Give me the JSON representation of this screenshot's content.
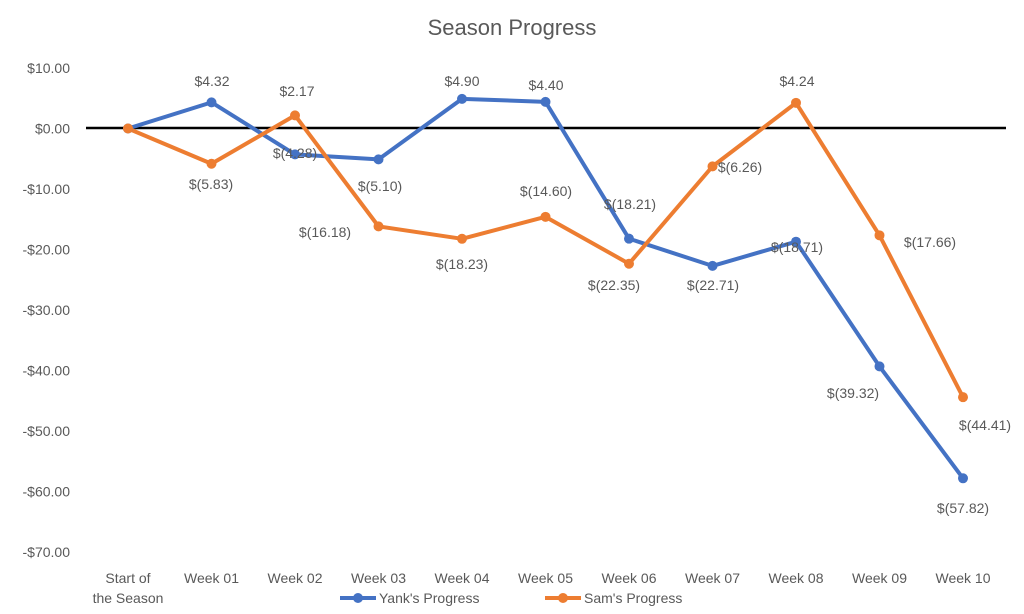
{
  "chart_data": {
    "type": "line",
    "title": "Season Progress",
    "xlabel": "",
    "ylabel": "",
    "categories": [
      "Start of the Season",
      "Week 01",
      "Week 02",
      "Week 03",
      "Week 04",
      "Week 05",
      "Week 06",
      "Week 07",
      "Week 08",
      "Week 09",
      "Week 10"
    ],
    "ylim": [
      -70,
      10
    ],
    "yticks": [
      10,
      0,
      -10,
      -20,
      -30,
      -40,
      -50,
      -60,
      -70
    ],
    "ytick_labels": [
      "$10.00",
      "$0.00",
      "-$10.00",
      "-$20.00",
      "-$30.00",
      "-$40.00",
      "-$50.00",
      "-$60.00",
      "-$70.00"
    ],
    "grid": false,
    "legend_position": "bottom",
    "series": [
      {
        "name": "Yank's Progress",
        "color": "#4472C4",
        "values": [
          0,
          4.32,
          -4.28,
          -5.1,
          4.9,
          4.4,
          -18.21,
          -22.71,
          -18.71,
          -39.32,
          -57.82
        ],
        "labels": [
          null,
          "$4.32",
          "$(4.28)",
          "$(5.10)",
          "$4.90",
          "$4.40",
          "$(18.21)",
          "$(22.71)",
          "$(18.71)",
          "$(39.32)",
          "$(57.82)"
        ]
      },
      {
        "name": "Sam's Progress",
        "color": "#ED7D31",
        "values": [
          0,
          -5.83,
          2.17,
          -16.18,
          -18.23,
          -14.6,
          -22.35,
          -6.26,
          4.24,
          -17.66,
          -44.41
        ],
        "labels": [
          null,
          "$(5.83)",
          "$2.17",
          "$(16.18)",
          "$(18.23)",
          "$(14.60)",
          "$(22.35)",
          "$(6.26)",
          "$4.24",
          "$(17.66)",
          "$(44.41)"
        ]
      }
    ]
  }
}
